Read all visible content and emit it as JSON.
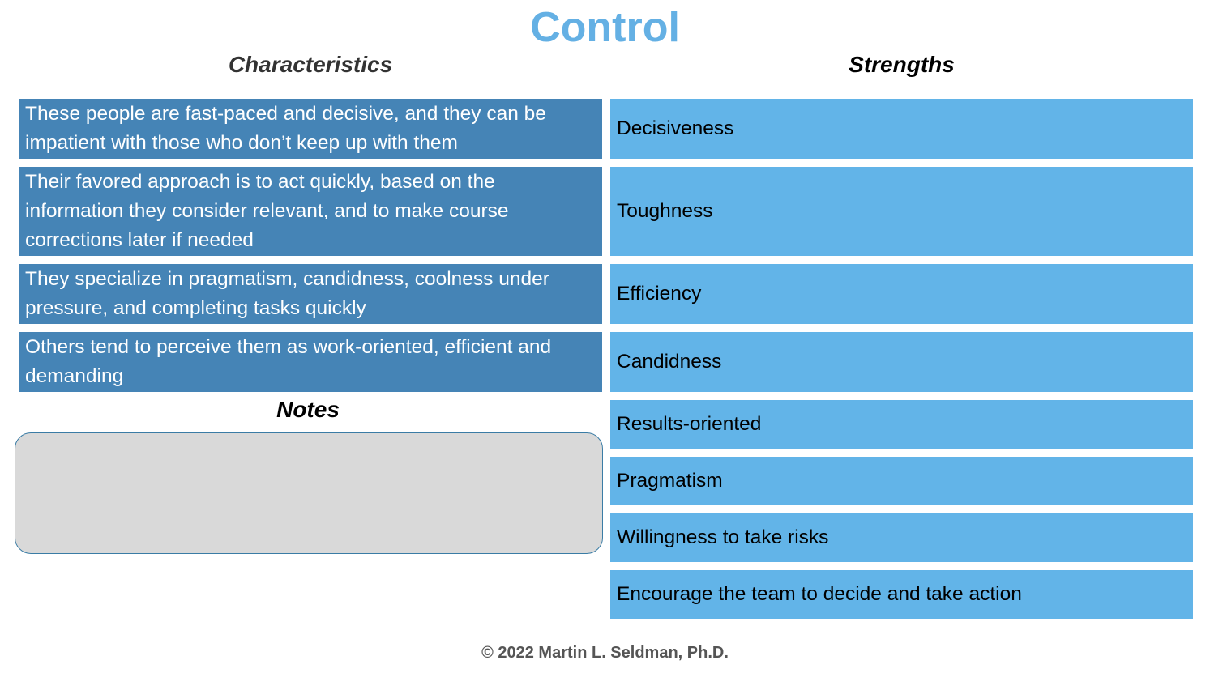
{
  "header": {
    "title": "Control"
  },
  "columns": {
    "characteristics": "Characteristics",
    "strengths": "Strengths"
  },
  "characteristics": [
    "These people are fast-paced and decisive, and they can be impatient with those who don’t keep up with them",
    "Their favored approach is to act quickly, based on the information they consider relevant, and to make course corrections later if needed",
    "They specialize in pragmatism, candidness, coolness under pressure, and completing tasks quickly",
    "Others tend to perceive them as work-oriented, efficient and demanding"
  ],
  "strengths": [
    "Decisiveness",
    "Toughness",
    "Efficiency",
    "Candidness",
    "Results-oriented",
    "Pragmatism",
    "Willingness to take risks",
    "Encourage the team to decide and take action"
  ],
  "notes": {
    "label": "Notes"
  },
  "footer": "© 2022 Martin L. Seldman, Ph.D."
}
